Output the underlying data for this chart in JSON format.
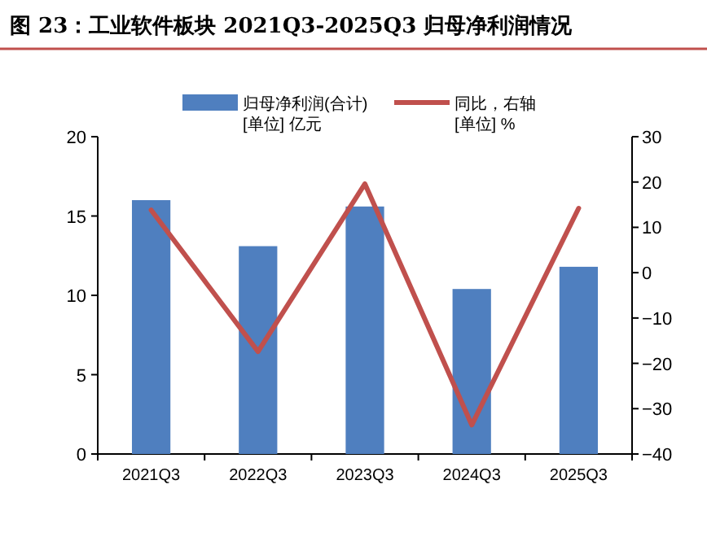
{
  "chart_data": {
    "type": "bar",
    "title": "图 23：工业软件板块 2021Q3-2025Q3 归母净利润情况",
    "categories": [
      "2021Q3",
      "2022Q3",
      "2023Q3",
      "2024Q3",
      "2025Q3"
    ],
    "series": [
      {
        "name": "归母净利润(合计)\n[单位] 亿元",
        "color": "#4f7fbf",
        "values": [
          16.0,
          13.1,
          15.6,
          10.4,
          11.8
        ]
      },
      {
        "name": "同比，右轴\n[单位] %",
        "type": "line",
        "axis": "y2",
        "color": "#c0504d",
        "values": [
          13.8,
          -17.4,
          19.6,
          -33.6,
          14.2
        ]
      }
    ],
    "ylim": [
      0,
      20
    ],
    "yticks": [
      0,
      5,
      10,
      15,
      20
    ],
    "y2lim": [
      -40,
      30
    ],
    "y2ticks": [
      -40,
      -30,
      -20,
      -10,
      0,
      10,
      20,
      30
    ],
    "grid": false,
    "legend": "top",
    "marker": "none",
    "line_style": "solid"
  }
}
